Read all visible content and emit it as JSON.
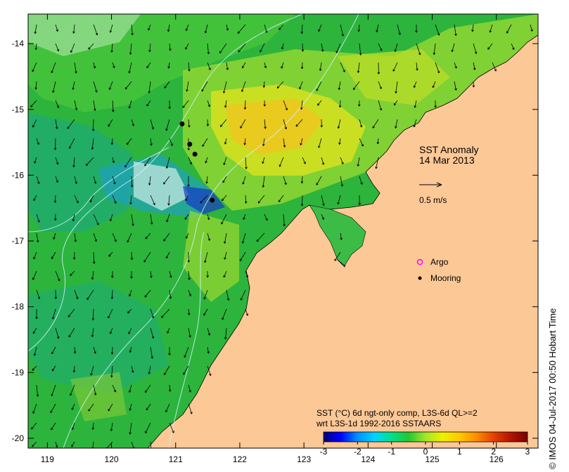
{
  "map": {
    "title_lines": [
      "SST Anomaly",
      "14 Mar 2013"
    ],
    "vector_scale_label": "0.5 m/s",
    "legend": [
      {
        "label": "Argo",
        "symbol": "argo-marker",
        "color": "#ff00ff"
      },
      {
        "label": "Mooring",
        "symbol": "mooring-marker",
        "color": "#000000"
      }
    ],
    "colorbar": {
      "title_line1": "SST (°C) 6d ngt-only comp, L3S-6d QL>=2",
      "title_line2": "wrt L3S-1d 1992-2016 SSTAARS",
      "ticks": [
        "-3",
        "-2",
        "-1",
        "0",
        "1",
        "2",
        "3"
      ],
      "range": [
        -3,
        3
      ],
      "colors": [
        "#00007a",
        "#0000ff",
        "#0090ff",
        "#00d4ff",
        "#00e08a",
        "#22c832",
        "#a0e628",
        "#f0f000",
        "#ffc800",
        "#ff8c00",
        "#e64000",
        "#b41400",
        "#7a0000"
      ]
    },
    "x_axis_ticks": [
      "119",
      "120",
      "121",
      "122",
      "123",
      "124",
      "125",
      "126"
    ],
    "y_axis_ticks": [
      "-14",
      "-15",
      "-16",
      "-17",
      "-18",
      "-19",
      "-20"
    ],
    "lon_range": [
      118.7,
      126.65
    ],
    "lat_range": [
      -20.15,
      -13.55
    ],
    "moorings": [
      {
        "lon": 121.1,
        "lat": -15.22
      },
      {
        "lon": 121.22,
        "lat": -15.53
      },
      {
        "lon": 121.3,
        "lat": -15.68
      },
      {
        "lon": 121.57,
        "lat": -16.38
      }
    ],
    "land_color": "#fcc896",
    "sea_base_color": "#2db43c",
    "credit": "© IMOS 04-Jul-2017 00:50 Hobart Time"
  }
}
